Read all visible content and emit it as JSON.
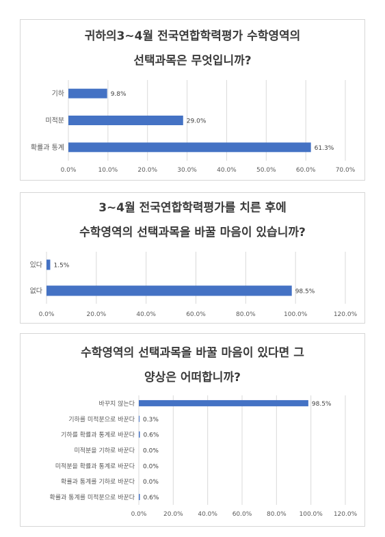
{
  "palette": {
    "bar": "#4472C4",
    "grid": "#d9d9d9",
    "text": "#595959"
  },
  "chart_data": [
    {
      "type": "bar",
      "orientation": "horizontal",
      "title_lines": [
        "귀하의3~4월 전국연합학력평가 수학영역의",
        "선택과목은 무엇입니까?"
      ],
      "categories": [
        "기하",
        "미적분",
        "확률과 통계"
      ],
      "values": [
        9.8,
        29.0,
        61.3
      ],
      "value_labels": [
        "9.8%",
        "29.0%",
        "61.3%"
      ],
      "xlim": [
        0,
        70
      ],
      "xticks": [
        "0.0%",
        "10.0%",
        "20.0%",
        "30.0%",
        "40.0%",
        "50.0%",
        "60.0%",
        "70.0%"
      ],
      "grid": true
    },
    {
      "type": "bar",
      "orientation": "horizontal",
      "title_lines": [
        "3~4월 전국연합학력평가를 치른 후에",
        "수학영역의 선택과목을 바꿀 마음이 있습니까?"
      ],
      "categories": [
        "있다",
        "없다"
      ],
      "values": [
        1.5,
        98.5
      ],
      "value_labels": [
        "1.5%",
        "98.5%"
      ],
      "xlim": [
        0,
        120
      ],
      "xticks": [
        "0.0%",
        "20.0%",
        "40.0%",
        "60.0%",
        "80.0%",
        "100.0%",
        "120.0%"
      ],
      "grid": true
    },
    {
      "type": "bar",
      "orientation": "horizontal",
      "title_lines": [
        "수학영역의 선택과목을 바꿀 마음이 있다면 그",
        "양상은 어떠합니까?"
      ],
      "categories": [
        "바꾸지 않는다",
        "기하를 미적분으로 바꾼다",
        "기하를 확률과 통계로 바꾼다",
        "미적분을 기하로 바꾼다",
        "미적분을 확률과 통계로 바꾼다",
        "확률과 통계를 기하로 바꾼다",
        "확률과 통계를 미적분으로 바꾼다"
      ],
      "values": [
        98.5,
        0.3,
        0.6,
        0.0,
        0.0,
        0.0,
        0.6
      ],
      "value_labels": [
        "98.5%",
        "0.3%",
        "0.6%",
        "0.0%",
        "0.0%",
        "0.0%",
        "0.6%"
      ],
      "xlim": [
        0,
        120
      ],
      "xticks": [
        "0.0%",
        "20.0%",
        "40.0%",
        "60.0%",
        "80.0%",
        "100.0%",
        "120.0%"
      ],
      "grid": true
    }
  ]
}
